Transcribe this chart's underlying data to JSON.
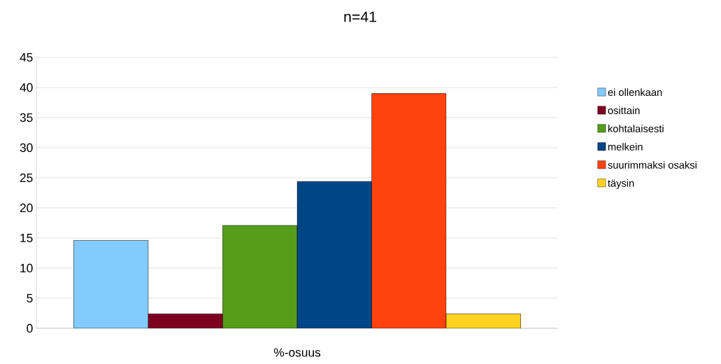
{
  "chart_data": {
    "type": "bar",
    "title": "n=41",
    "categories": [
      "%-osuus"
    ],
    "series": [
      {
        "name": "ei ollenkaan",
        "color": "#83caff",
        "values": [
          14.6
        ]
      },
      {
        "name": "osittain",
        "color": "#7e0021",
        "values": [
          2.4
        ]
      },
      {
        "name": "kohtalaisesti",
        "color": "#579d1c",
        "values": [
          17.1
        ]
      },
      {
        "name": "melkein",
        "color": "#004586",
        "values": [
          24.4
        ]
      },
      {
        "name": "suurimmaksi osaksi",
        "color": "#ff420e",
        "values": [
          39
        ]
      },
      {
        "name": "täysin",
        "color": "#ffd320",
        "values": [
          2.4
        ]
      }
    ],
    "ylim": [
      0,
      45
    ],
    "yticks": [
      0,
      5,
      10,
      15,
      20,
      25,
      30,
      35,
      40,
      45
    ],
    "grid": "y",
    "legend": "right"
  }
}
